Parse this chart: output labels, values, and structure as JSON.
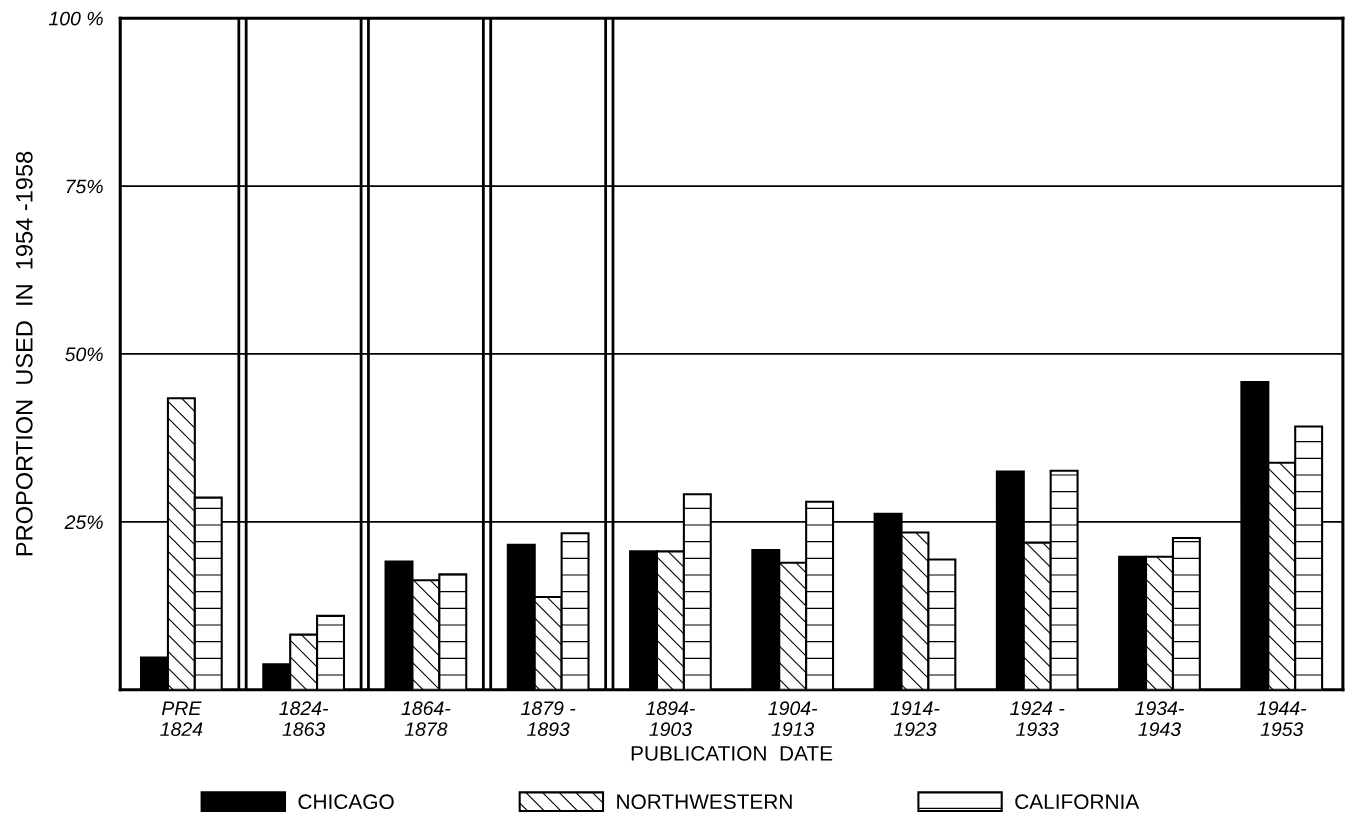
{
  "chart_data": {
    "type": "bar",
    "ylabel": "PROPORTION  USED  IN  1954 -1958",
    "xlabel": "PUBLICATION  DATE",
    "categories": [
      "PRE\n1824",
      "1824-\n1863",
      "1864-\n1878",
      "1879 -\n1893",
      "1894-\n1903",
      "1904-\n1913",
      "1914-\n1923",
      "1924 -\n1933",
      "1934-\n1943",
      "1944-\n1953"
    ],
    "series": [
      {
        "name": "CHICAGO",
        "color": "#000000",
        "values": [
          4.8,
          3.8,
          19.1,
          21.6,
          20.6,
          20.8,
          26.2,
          32.5,
          19.8,
          45.8
        ]
      },
      {
        "name": "NORTHWESTERN",
        "color": "#000000",
        "values": [
          43.4,
          8.2,
          16.3,
          13.8,
          20.6,
          18.9,
          23.4,
          21.9,
          19.8,
          33.8
        ]
      },
      {
        "name": "CALIFORNIA",
        "color": "#000000",
        "values": [
          28.6,
          11.0,
          17.2,
          23.3,
          29.1,
          28.0,
          19.4,
          32.6,
          22.6,
          39.2
        ]
      }
    ],
    "ylim": [
      0,
      100
    ],
    "yticks": [
      {
        "value": 25,
        "label": "25%"
      },
      {
        "value": 50,
        "label": "50%"
      },
      {
        "value": 75,
        "label": "75%"
      },
      {
        "value": 100,
        "label": "100 %"
      }
    ],
    "grid": "y",
    "legend": "bottom"
  }
}
